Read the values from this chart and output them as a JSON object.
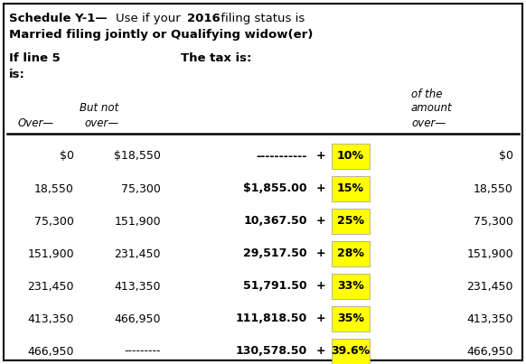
{
  "figsize": [
    5.82,
    4.03
  ],
  "dpi": 100,
  "highlight_color": "#FFFF00",
  "border_color": "#000000",
  "bg_color": "#FFFFFF",
  "text_color": "#000000",
  "rows": [
    [
      "$0",
      "$18,550",
      "-----------",
      "+",
      "10%",
      "$0"
    ],
    [
      "18,550",
      "75,300",
      "$1,855.00",
      "+",
      "15%",
      "18,550"
    ],
    [
      "75,300",
      "151,900",
      "10,367.50",
      "+",
      "25%",
      "75,300"
    ],
    [
      "151,900",
      "231,450",
      "29,517.50",
      "+",
      "28%",
      "151,900"
    ],
    [
      "231,450",
      "413,350",
      "51,791.50",
      "+",
      "33%",
      "231,450"
    ],
    [
      "413,350",
      "466,950",
      "111,818.50",
      "+",
      "35%",
      "413,350"
    ],
    [
      "466,950",
      "---------",
      "130,578.50",
      "+",
      "39.6%",
      "466,950"
    ]
  ]
}
